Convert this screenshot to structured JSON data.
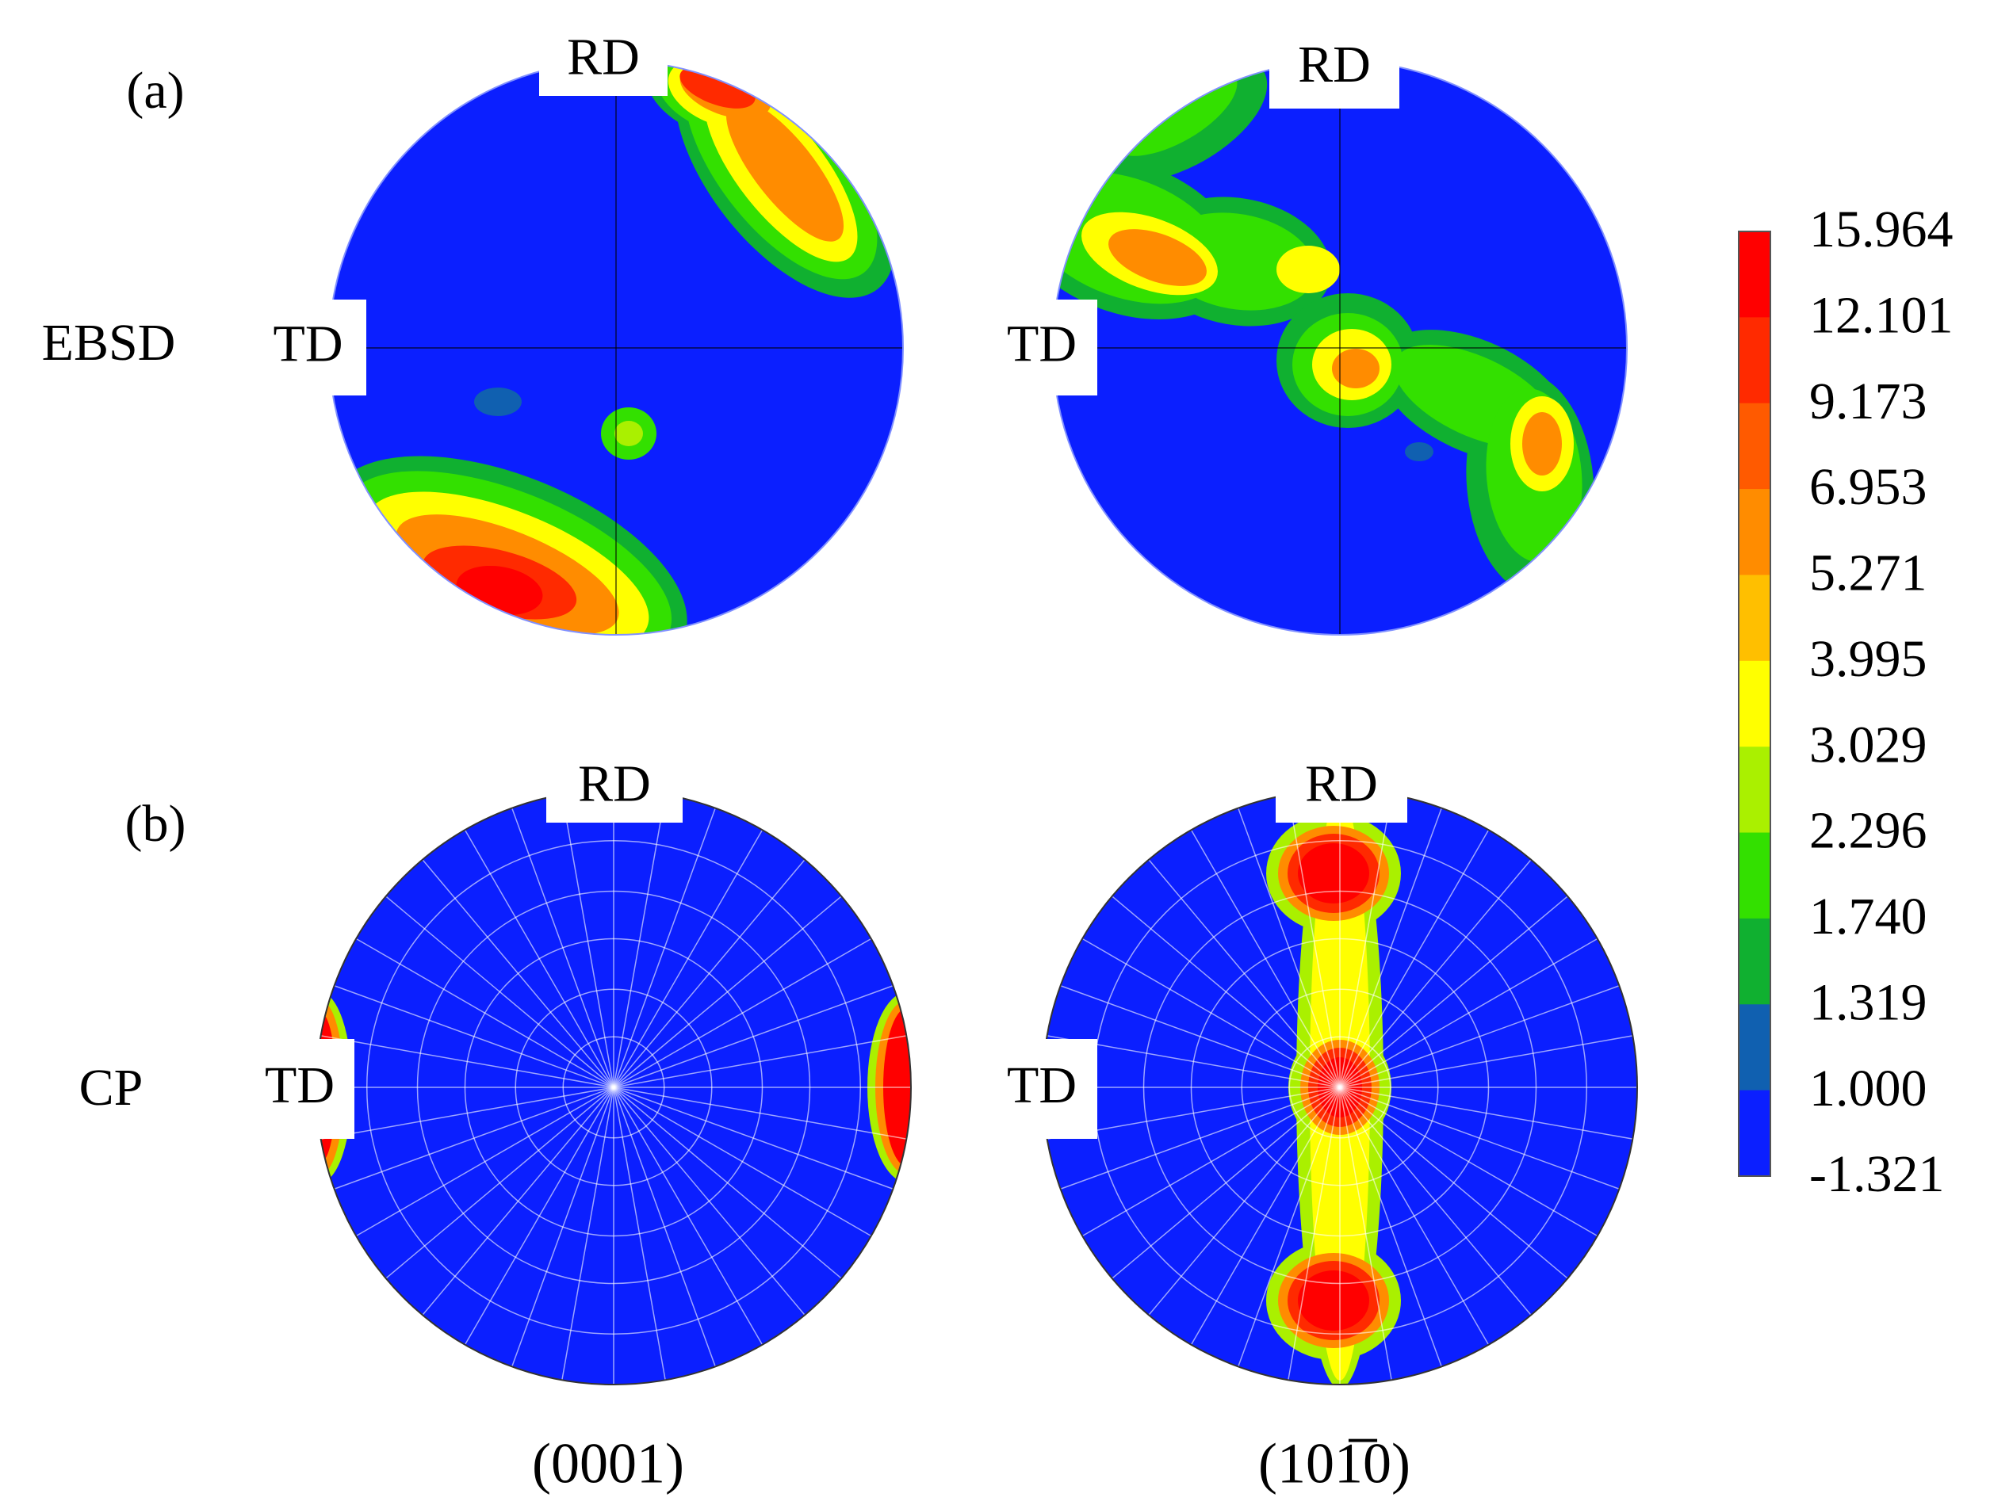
{
  "rows": [
    {
      "label": "(a)",
      "name": "EBSD"
    },
    {
      "label": "(b)",
      "name": "CP"
    }
  ],
  "plots": [
    {
      "rd": "RD",
      "td": "TD"
    },
    {
      "rd": "RD",
      "td": "TD"
    },
    {
      "rd": "RD",
      "td": "TD"
    },
    {
      "rd": "RD",
      "td": "TD"
    }
  ],
  "columns": [
    "(0001)",
    "(101̅0)"
  ],
  "colorbar": {
    "labels": [
      "15.964",
      "12.101",
      "9.173",
      "6.953",
      "5.271",
      "3.995",
      "3.029",
      "2.296",
      "1.740",
      "1.319",
      "1.000",
      "-1.321"
    ]
  }
}
